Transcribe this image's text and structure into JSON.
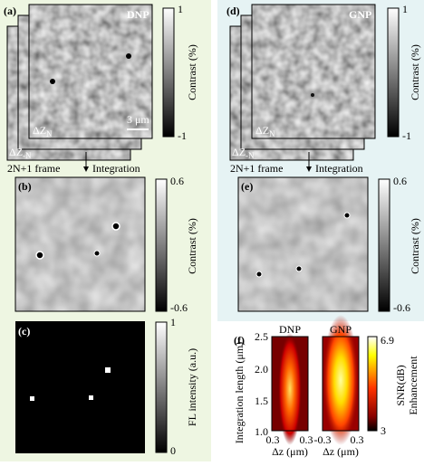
{
  "panels": {
    "a": {
      "label": "(a)",
      "name": "DNP",
      "scale_bar": "3 μm",
      "front_frame": {
        "base": "ΔZ",
        "sub": "N"
      },
      "back_frame": {
        "base": "ΔZ",
        "sub": "-N"
      },
      "colorbar": {
        "top": "1",
        "bottom": "-1",
        "title": "Contrast (%)"
      }
    },
    "b": {
      "label": "(b)",
      "colorbar": {
        "top": "0.6",
        "bottom": "-0.6",
        "title": "Contrast (%)"
      }
    },
    "c": {
      "label": "(c)",
      "colorbar": {
        "top": "1",
        "bottom": "0",
        "title": "FL intensity (a.u.)"
      }
    },
    "d": {
      "label": "(d)",
      "name": "GNP",
      "front_frame": {
        "base": "ΔZ",
        "sub": "N"
      },
      "back_frame": {
        "base": "ΔZ",
        "sub": "-N"
      },
      "colorbar": {
        "top": "1",
        "bottom": "-1",
        "title": "Contrast (%)"
      }
    },
    "e": {
      "label": "(e)",
      "colorbar": {
        "top": "0.6",
        "bottom": "-0.6",
        "title": "Contrast (%)"
      }
    },
    "f": {
      "label": "(f)",
      "maps": [
        "DNP",
        "GNP"
      ],
      "y_label": "Integration length (μm)",
      "y_ticks": [
        "2.5",
        "2.0",
        "1.5",
        "1.0"
      ],
      "x_ticks": [
        [
          "0.3",
          "0.3"
        ],
        [
          "-0.3",
          "0.3"
        ]
      ],
      "x_label": "Δz (μm)",
      "colorbar": {
        "top": "6.9",
        "bottom": "3",
        "title": "SNR(dB)",
        "subtitle": "Enhancement"
      }
    }
  },
  "arrows": {
    "frames": "2N+1 frame",
    "integration": "Integration"
  }
}
